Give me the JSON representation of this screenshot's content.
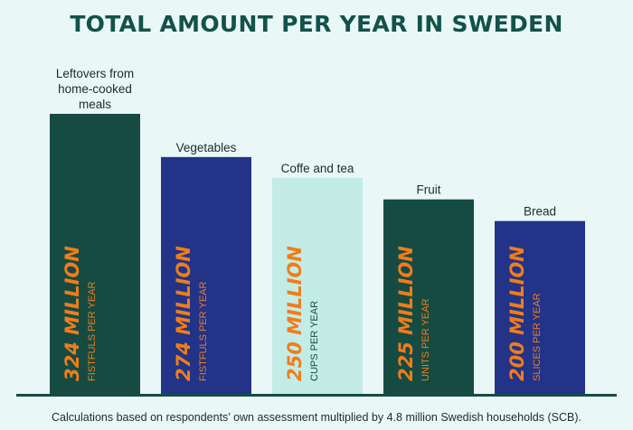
{
  "page": {
    "title": "TOTAL AMOUNT PER YEAR IN SWEDEN",
    "caption": "Calculations based on respondents’ own assessment multiplied by 4.8 million Swedish households (SCB)."
  },
  "chart_data": {
    "type": "bar",
    "title": "TOTAL AMOUNT PER YEAR IN SWEDEN",
    "xlabel": "",
    "ylabel": "",
    "ylim": [
      0,
      324
    ],
    "grid": false,
    "categories": [
      "Leftovers from home-cooked meals",
      "Vegetables",
      "Coffe and tea",
      "Fruit",
      "Bread"
    ],
    "values": [
      324,
      274,
      250,
      225,
      200
    ],
    "value_labels": [
      "324 MILLION",
      "274 MILLION",
      "250 MILLION",
      "225 MILLION",
      "200 MILLION"
    ],
    "unit_labels": [
      "FISTFULS PER YEAR",
      "FISTFULS PER YEAR",
      "CUPS PER YEAR",
      "UNITS PER YEAR",
      "SLICES PER YEAR"
    ],
    "colors": [
      "#164b43",
      "#223388",
      "#c3ece6",
      "#164b43",
      "#223388"
    ],
    "value_label_color": "#f07d1a",
    "unit_label_colors": [
      "#f07d1a",
      "#f07d1a",
      "#164b43",
      "#f07d1a",
      "#f07d1a"
    ],
    "baseline_color": "#164b43"
  }
}
